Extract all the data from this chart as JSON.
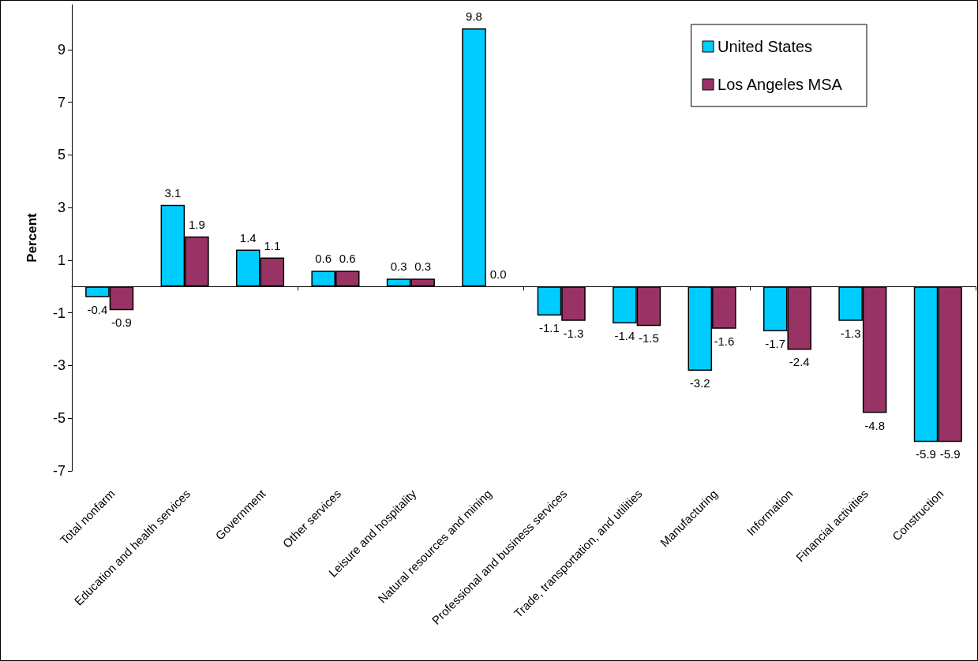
{
  "chart_data": {
    "type": "bar",
    "ylabel": "Percent",
    "categories": [
      "Total nonfarm",
      "Education and health services",
      "Government",
      "Other services",
      "Leisure and hospitality",
      "Natural resources and mining",
      "Professional and business services",
      "Trade, transportation, and utilities",
      "Manufacturing",
      "Information",
      "Financial activities",
      "Construction"
    ],
    "series": [
      {
        "name": "United States",
        "color": "#00ccff",
        "values": [
          -0.4,
          3.1,
          1.4,
          0.6,
          0.3,
          9.8,
          -1.1,
          -1.4,
          -3.2,
          -1.7,
          -1.3,
          -5.9
        ],
        "value_labels": [
          "-0.4",
          "3.1",
          "1.4",
          "0.6",
          "0.3",
          "9.8",
          "-1.1",
          "-1.4",
          "-3.2",
          "-1.7",
          "-1.3",
          "-5.9"
        ]
      },
      {
        "name": "Los Angeles MSA",
        "color": "#993366",
        "values": [
          -0.9,
          1.9,
          1.1,
          0.6,
          0.3,
          0.0,
          -1.3,
          -1.5,
          -1.6,
          -2.4,
          -4.8,
          -5.9
        ],
        "value_labels": [
          "-0.9",
          "1.9",
          "1.1",
          "0.6",
          "0.3",
          "0.0",
          "-1.3",
          "-1.5",
          "-1.6",
          "-2.4",
          "-4.8",
          "-5.9"
        ]
      }
    ],
    "ylim": [
      -7,
      10.7
    ],
    "yticks": [
      -7,
      -5,
      -3,
      -1,
      1,
      3,
      5,
      7,
      9
    ],
    "grid": false,
    "legend": "top right"
  }
}
